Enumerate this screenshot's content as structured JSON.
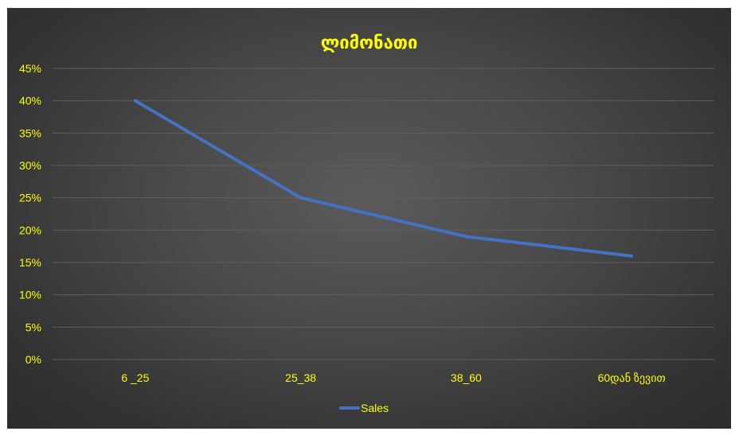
{
  "chart_data": {
    "type": "line",
    "title": "ლიმონათი",
    "categories": [
      "6  _25",
      "25_38",
      "38_60",
      "60დან ზევით"
    ],
    "series": [
      {
        "name": "Sales",
        "values": [
          40,
          25,
          19,
          16
        ],
        "color": "#4472c4"
      }
    ],
    "y_ticks": [
      "0%",
      "5%",
      "10%",
      "15%",
      "20%",
      "25%",
      "30%",
      "35%",
      "40%",
      "45%"
    ],
    "ylim": [
      0,
      45
    ],
    "y_unit": "%",
    "grid": true,
    "legend_position": "bottom",
    "colors": {
      "background": "#404040",
      "text": "#ffff00",
      "grid": "#5e5e5e",
      "line": "#4472c4"
    }
  }
}
